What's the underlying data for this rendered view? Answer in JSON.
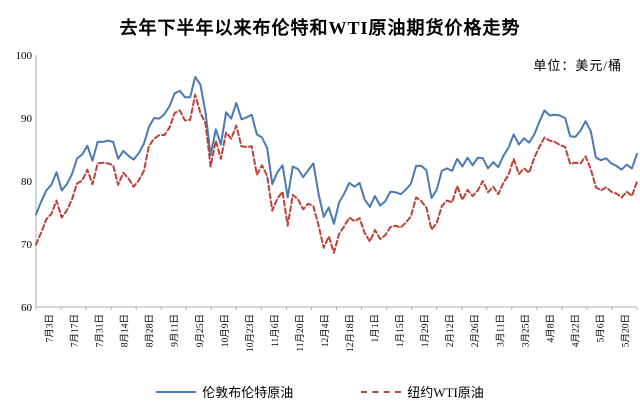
{
  "header": {
    "title": "去年下半年以来布伦特和WTI原油期货价格走势",
    "unit_label": "单位：美元/桶"
  },
  "legend": {
    "brent_label": "伦敦布伦特原油",
    "wti_label": "纽约WTI原油"
  },
  "chart_data": {
    "type": "line",
    "title": "去年下半年以来布伦特和WTI原油期货价格走势",
    "ylabel": "美元/桶",
    "xlabel": "",
    "ylim": [
      60,
      100
    ],
    "yticks": [
      60,
      70,
      80,
      90,
      100
    ],
    "grid": false,
    "legend_position": "bottom",
    "x_tick_interval_days": 14,
    "categories": [
      "7月3日",
      "7月17日",
      "7月31日",
      "8月14日",
      "8月28日",
      "9月11日",
      "9月25日",
      "10月9日",
      "10月23日",
      "11月6日",
      "11月20日",
      "12月4日",
      "12月18日",
      "1月1日",
      "1月15日",
      "1月29日",
      "2月12日",
      "2月26日",
      "3月11日",
      "3月25日",
      "4月8日",
      "4月22日",
      "5月6日",
      "5月20日"
    ],
    "colors": {
      "axis": "#b0b0b0",
      "text": "#000000",
      "brent": "#4a7ab5",
      "wti": "#bc4238"
    },
    "series": [
      {
        "name": "伦敦布伦特原油",
        "color": "#4a7ab5",
        "style": "solid",
        "values": [
          74.7,
          76.7,
          78.5,
          79.4,
          81.4,
          78.5,
          79.5,
          81.1,
          83.6,
          84.2,
          85.6,
          83.2,
          86.2,
          86.2,
          86.4,
          86.2,
          83.5,
          84.8,
          84.0,
          83.4,
          84.4,
          85.9,
          88.6,
          90.0,
          89.9,
          90.6,
          91.9,
          93.9,
          94.3,
          93.3,
          93.3,
          96.5,
          95.3,
          90.9,
          84.1,
          88.2,
          85.8,
          90.9,
          89.9,
          92.4,
          89.8,
          90.1,
          90.5,
          87.4,
          86.9,
          85.2,
          79.5,
          81.4,
          82.5,
          77.4,
          82.3,
          81.9,
          80.6,
          81.7,
          82.8,
          78.0,
          74.3,
          75.8,
          73.2,
          76.6,
          78.0,
          79.7,
          79.1,
          79.7,
          77.0,
          75.9,
          77.6,
          76.1,
          76.8,
          78.3,
          78.2,
          77.9,
          78.6,
          79.6,
          82.4,
          82.4,
          81.7,
          77.3,
          78.6,
          81.6,
          82.0,
          81.6,
          83.5,
          82.3,
          83.7,
          82.5,
          83.7,
          83.6,
          82.0,
          83.0,
          82.2,
          84.0,
          85.3,
          87.4,
          85.8,
          86.8,
          86.1,
          87.4,
          89.4,
          91.2,
          90.4,
          90.5,
          90.4,
          90.0,
          87.1,
          87.0,
          88.0,
          89.5,
          87.9,
          83.7,
          83.3,
          83.6,
          82.8,
          82.4,
          81.8,
          82.6,
          82.0,
          84.3
        ]
      },
      {
        "name": "纽约WTI原油",
        "color": "#bc4238",
        "style": "dashed",
        "values": [
          69.9,
          71.8,
          73.9,
          74.8,
          76.9,
          74.2,
          75.3,
          77.1,
          79.6,
          80.1,
          81.8,
          79.5,
          82.8,
          82.9,
          82.8,
          82.5,
          79.4,
          81.3,
          80.4,
          79.1,
          80.1,
          81.6,
          85.6,
          86.7,
          87.3,
          87.3,
          88.5,
          90.8,
          91.2,
          89.6,
          89.7,
          93.7,
          90.8,
          89.2,
          82.3,
          86.4,
          83.5,
          87.7,
          86.7,
          88.8,
          85.5,
          85.4,
          85.5,
          81.0,
          82.5,
          80.8,
          75.3,
          77.2,
          78.3,
          72.9,
          77.8,
          77.1,
          75.5,
          76.4,
          76.0,
          73.0,
          69.4,
          71.2,
          68.6,
          71.6,
          72.8,
          74.2,
          73.6,
          74.1,
          71.7,
          70.4,
          72.2,
          70.8,
          71.4,
          72.7,
          72.9,
          72.6,
          73.4,
          74.4,
          77.4,
          76.8,
          75.8,
          72.3,
          73.3,
          76.0,
          76.9,
          76.6,
          79.2,
          77.0,
          78.6,
          77.6,
          78.5,
          80.0,
          78.2,
          79.1,
          77.9,
          79.7,
          81.0,
          83.5,
          81.1,
          82.0,
          81.3,
          83.7,
          85.4,
          86.9,
          86.4,
          86.2,
          85.7,
          85.4,
          82.7,
          82.9,
          82.8,
          83.9,
          81.9,
          79.0,
          78.5,
          79.0,
          78.3,
          78.0,
          77.4,
          78.3,
          77.6,
          79.9
        ]
      }
    ]
  }
}
